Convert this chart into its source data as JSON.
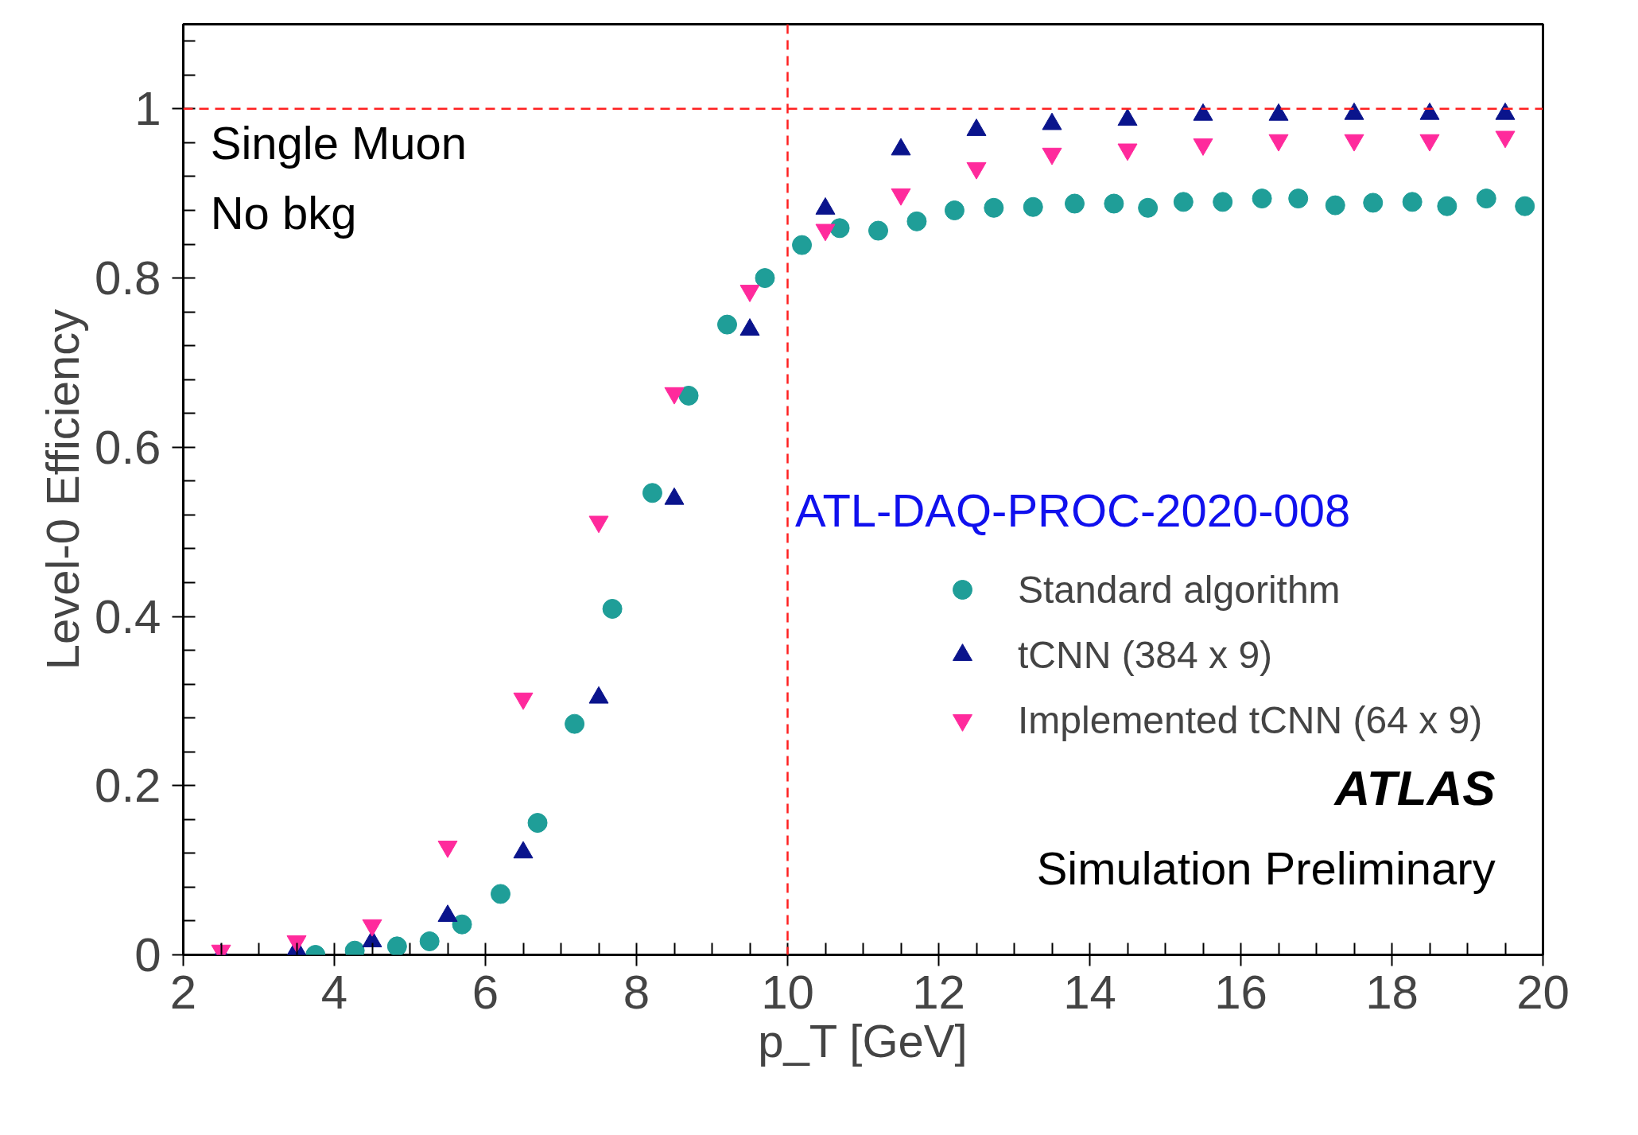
{
  "chart_data": {
    "type": "scatter",
    "xlabel": "p_T [GeV]",
    "ylabel": "Level-0 Efficiency",
    "xlim": [
      2,
      20
    ],
    "ylim": [
      0,
      1.1
    ],
    "xticks": [
      2,
      4,
      6,
      8,
      10,
      12,
      14,
      16,
      18,
      20
    ],
    "yticks": [
      0,
      0.2,
      0.4,
      0.6,
      0.8,
      1
    ],
    "grid": false,
    "legend": "right",
    "series": [
      {
        "name": "Standard algorithm",
        "color": "#1f9e98",
        "x": [
          3.75,
          4.27,
          4.83,
          5.26,
          5.69,
          6.2,
          6.69,
          7.18,
          7.68,
          8.21,
          8.69,
          9.2,
          9.7,
          10.19,
          10.69,
          11.2,
          11.71,
          12.21,
          12.73,
          13.25,
          13.8,
          14.32,
          14.77,
          15.24,
          15.76,
          16.28,
          16.76,
          17.25,
          17.75,
          18.27,
          18.73,
          19.25,
          19.76
        ],
        "values": [
          0.0,
          0.005,
          0.01,
          0.016,
          0.036,
          0.072,
          0.156,
          0.273,
          0.409,
          0.546,
          0.661,
          0.745,
          0.8,
          0.839,
          0.859,
          0.856,
          0.867,
          0.88,
          0.883,
          0.884,
          0.888,
          0.888,
          0.883,
          0.89,
          0.89,
          0.894,
          0.894,
          0.886,
          0.889,
          0.89,
          0.885,
          0.894,
          0.885
        ]
      },
      {
        "name": "tCNN (384 x 9)",
        "color": "#0a148c",
        "x": [
          2.5,
          3.5,
          4.5,
          5.5,
          6.5,
          7.5,
          8.5,
          9.5,
          10.5,
          11.5,
          12.5,
          13.5,
          14.5,
          15.5,
          16.5,
          17.5,
          18.5,
          19.5
        ],
        "values": [
          0.0,
          0.006,
          0.016,
          0.046,
          0.121,
          0.304,
          0.539,
          0.739,
          0.882,
          0.952,
          0.975,
          0.982,
          0.987,
          0.993,
          0.993,
          0.994,
          0.994,
          0.994
        ]
      },
      {
        "name": "Implemented tCNN (64 x 9)",
        "color": "#ff2a9c",
        "x": [
          2.5,
          3.5,
          4.5,
          5.5,
          6.5,
          7.5,
          8.5,
          9.5,
          10.5,
          11.5,
          12.5,
          13.5,
          14.5,
          15.5,
          16.5,
          17.5,
          18.5,
          19.5
        ],
        "values": [
          0.005,
          0.016,
          0.035,
          0.128,
          0.303,
          0.512,
          0.664,
          0.785,
          0.857,
          0.899,
          0.93,
          0.947,
          0.952,
          0.958,
          0.963,
          0.963,
          0.963,
          0.967
        ]
      }
    ],
    "ref_lines": [
      {
        "axis": "y",
        "value": 1,
        "color": "#ff2020",
        "line_style": "dashed"
      },
      {
        "axis": "x",
        "value": 10,
        "color": "#ff2020",
        "line_style": "dashed"
      }
    ],
    "annotations": [
      "Single Muon",
      "No bkg",
      "ATL-DAQ-PROC-2020-008",
      "ATLAS",
      "Simulation Preliminary"
    ]
  }
}
